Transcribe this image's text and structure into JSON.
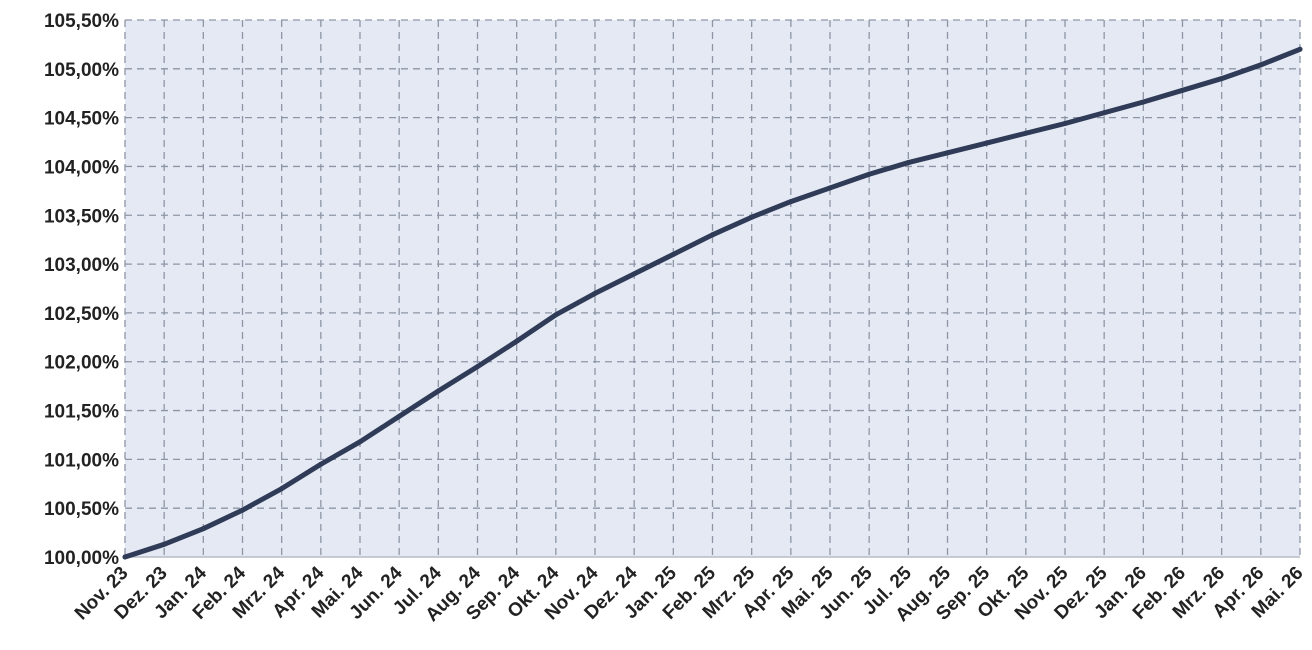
{
  "chart_data": {
    "type": "line",
    "title": "",
    "xlabel": "",
    "ylabel": "",
    "grid": true,
    "legend": "none",
    "colors": {
      "plot_background": "#e4e9f4",
      "grid": "#8e96a6",
      "line": "#2f3b57",
      "axis": "#b8bcc6"
    },
    "ylim": [
      100,
      105.5
    ],
    "y_ticks": [
      "100,00%",
      "100,50%",
      "101,00%",
      "101,50%",
      "102,00%",
      "102,50%",
      "103,00%",
      "103,50%",
      "104,00%",
      "104,50%",
      "105,00%",
      "105,50%"
    ],
    "categories": [
      "Nov. 23",
      "Dez. 23",
      "Jan. 24",
      "Feb. 24",
      "Mrz. 24",
      "Apr. 24",
      "Mai. 24",
      "Jun. 24",
      "Jul. 24",
      "Aug. 24",
      "Sep. 24",
      "Okt. 24",
      "Nov. 24",
      "Dez. 24",
      "Jan. 25",
      "Feb. 25",
      "Mrz. 25",
      "Apr. 25",
      "Mai. 25",
      "Jun. 25",
      "Jul. 25",
      "Aug. 25",
      "Sep. 25",
      "Okt. 25",
      "Nov. 25",
      "Dez. 25",
      "Jan. 26",
      "Feb. 26",
      "Mrz. 26",
      "Apr. 26",
      "Mai. 26"
    ],
    "series": [
      {
        "values": [
          100.0,
          100.13,
          100.29,
          100.48,
          100.7,
          100.95,
          101.18,
          101.44,
          101.7,
          101.95,
          102.21,
          102.48,
          102.7,
          102.9,
          103.1,
          103.3,
          103.48,
          103.64,
          103.78,
          103.92,
          104.04,
          104.14,
          104.24,
          104.34,
          104.44,
          104.55,
          104.66,
          104.78,
          104.9,
          105.04,
          105.2
        ]
      }
    ]
  }
}
